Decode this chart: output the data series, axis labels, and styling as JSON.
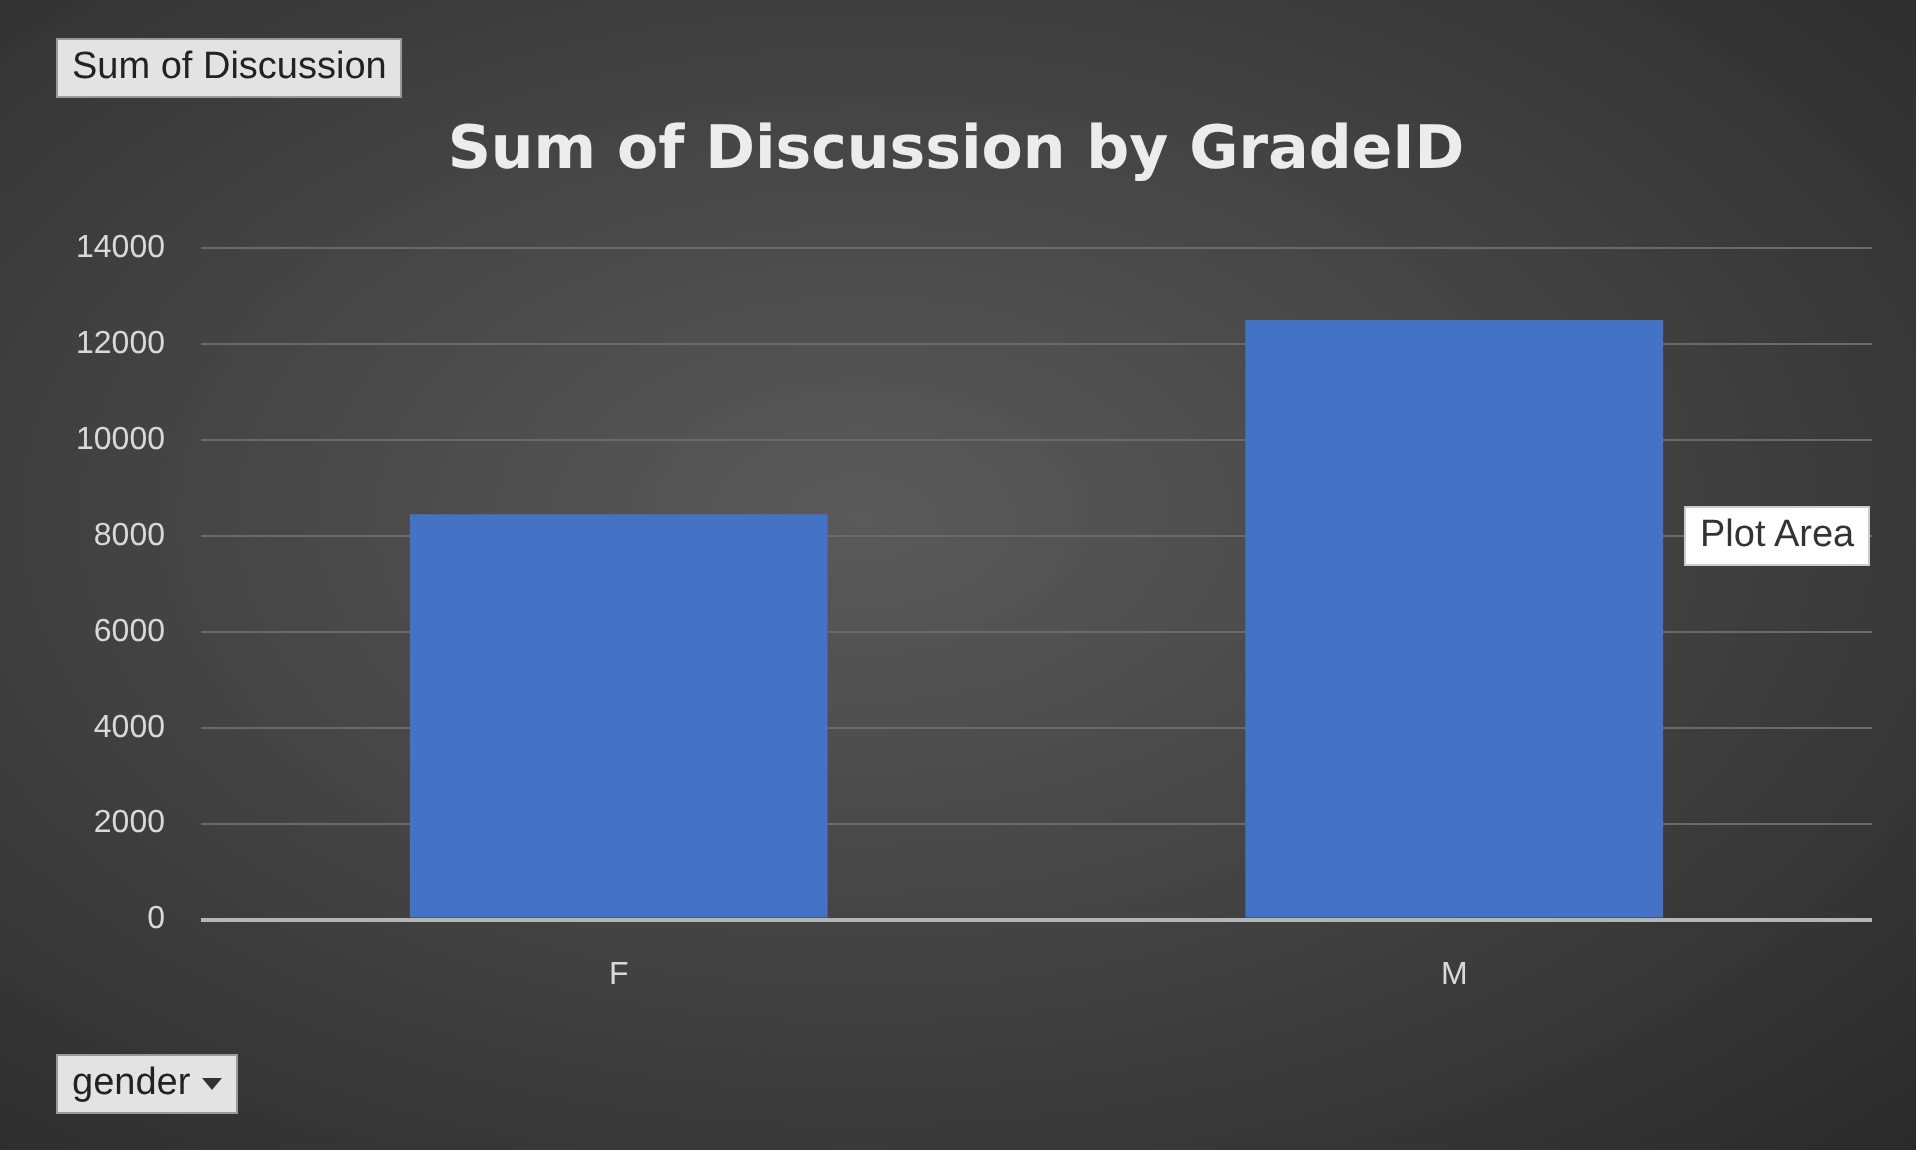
{
  "chart_data": {
    "type": "bar",
    "title": "Sum of Discussion by GradeID",
    "categories": [
      "F",
      "M"
    ],
    "values": [
      8450,
      12500
    ],
    "color": "#4472c4",
    "ylim": [
      0,
      14000
    ],
    "yticks": [
      0,
      2000,
      4000,
      6000,
      8000,
      10000,
      12000,
      14000
    ],
    "grid": "y",
    "legend": false,
    "annotations": [
      "Sum of Discussion",
      "gender",
      "Plot Area"
    ]
  }
}
